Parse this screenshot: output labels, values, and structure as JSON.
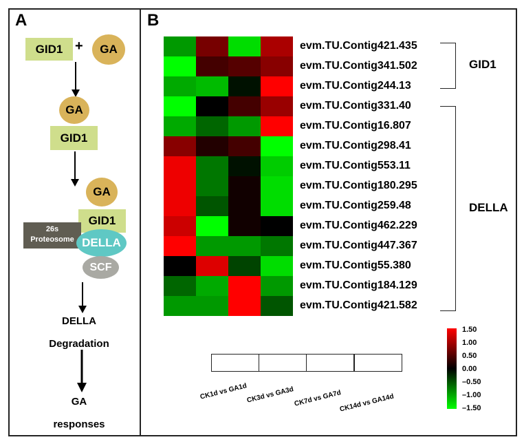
{
  "panel_a": {
    "letter": "A",
    "gid1": "GID1",
    "plus": "+",
    "ga": "GA",
    "proteasome_line1": "26s",
    "proteasome_line2": "Proteosome",
    "della": "DELLA",
    "scf": "SCF",
    "degradation_line1": "DELLA",
    "degradation_line2": "Degradation",
    "responses_line1": "GA",
    "responses_line2": "responses"
  },
  "panel_b": {
    "letter": "B",
    "groups": {
      "gid1": "GID1",
      "della": "DELLA"
    },
    "conditions": [
      "CK1d vs GA1d",
      "CK3d vs GA3d",
      "CK7d vs GA7d",
      "CK14d vs GA14d"
    ],
    "legend_ticks": [
      "1.50",
      "1.00",
      "0.50",
      "0.00",
      "–0.50",
      "–1.00",
      "–1.50"
    ]
  },
  "chart_data": {
    "type": "heatmap",
    "columns": [
      "CK1d vs GA1d",
      "CK3d vs GA3d",
      "CK7d vs GA7d",
      "CK14d vs GA14d"
    ],
    "rows": [
      "evm.TU.Contig421.435",
      "evm.TU.Contig341.502",
      "evm.TU.Contig244.13",
      "evm.TU.Contig331.40",
      "evm.TU.Contig16.807",
      "evm.TU.Contig298.41",
      "evm.TU.Contig553.11",
      "evm.TU.Contig180.295",
      "evm.TU.Contig259.48",
      "evm.TU.Contig462.229",
      "evm.TU.Contig447.367",
      "evm.TU.Contig55.380",
      "evm.TU.Contig184.129",
      "evm.TU.Contig421.582"
    ],
    "values": [
      [
        -0.9,
        0.7,
        -1.3,
        1.0
      ],
      [
        -1.5,
        0.4,
        0.5,
        0.8
      ],
      [
        -1.0,
        -1.1,
        -0.1,
        1.5
      ],
      [
        -1.5,
        0.0,
        0.4,
        0.9
      ],
      [
        -1.0,
        -0.6,
        -0.9,
        1.5
      ],
      [
        0.8,
        0.2,
        0.4,
        -1.5
      ],
      [
        1.4,
        -0.7,
        -0.1,
        -1.2
      ],
      [
        1.4,
        -0.7,
        0.1,
        -1.3
      ],
      [
        1.4,
        -0.5,
        0.1,
        -1.3
      ],
      [
        1.2,
        -1.5,
        0.1,
        0.0
      ],
      [
        1.5,
        -0.9,
        -0.9,
        -0.7
      ],
      [
        0.0,
        1.3,
        -0.4,
        -1.3
      ],
      [
        -0.6,
        -1.0,
        1.5,
        -0.9
      ],
      [
        -0.9,
        -0.9,
        1.5,
        -0.5
      ]
    ],
    "color_scale": {
      "min": -1.5,
      "max": 1.5,
      "low": "#00ff00",
      "mid": "#000000",
      "high": "#ff0000"
    }
  }
}
